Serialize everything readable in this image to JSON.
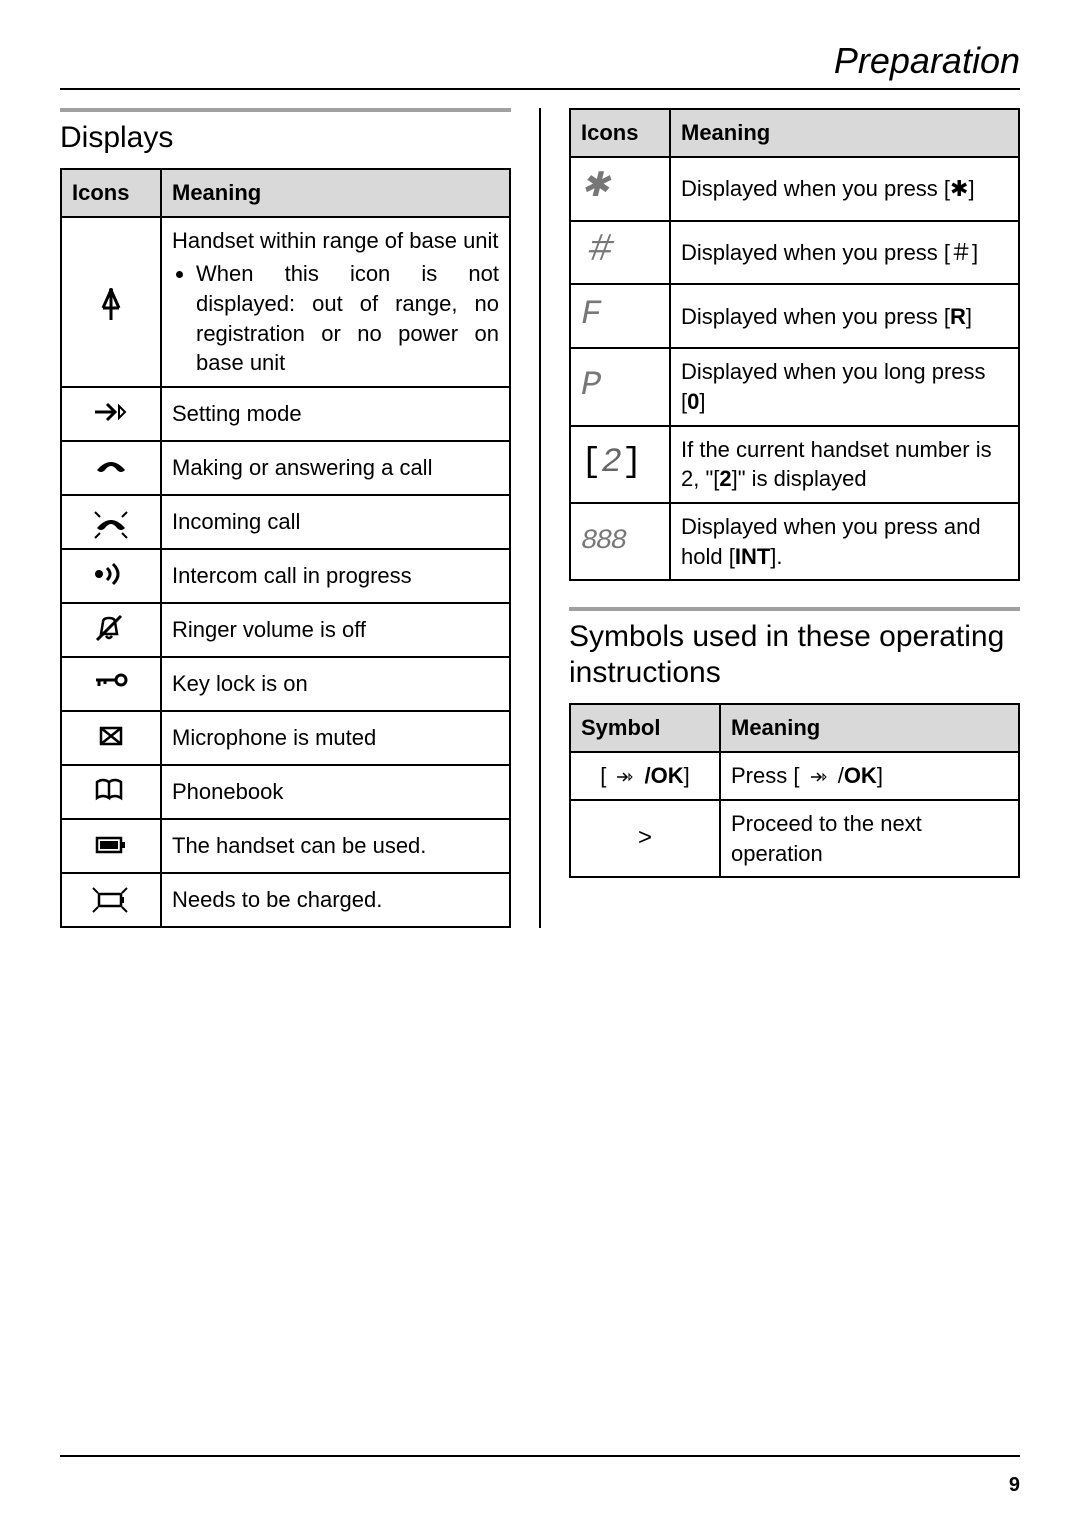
{
  "header": {
    "title": "Preparation"
  },
  "pageNumber": "9",
  "left": {
    "sectionTitle": "Displays",
    "columns": {
      "icons": "Icons",
      "meaning": "Meaning"
    },
    "rows": [
      {
        "icon": "antenna",
        "meaning": "Handset within range of base unit",
        "bullet": "When this icon is not displayed: out of range, no registration or no power on base unit"
      },
      {
        "icon": "arrow-ok",
        "meaning": "Setting mode"
      },
      {
        "icon": "handset-up",
        "meaning": "Making or answering a call"
      },
      {
        "icon": "handset-ringing",
        "meaning": "Incoming call"
      },
      {
        "icon": "intercom",
        "meaning": "Intercom call in progress"
      },
      {
        "icon": "ringer-off",
        "meaning": "Ringer volume is off"
      },
      {
        "icon": "keylock",
        "meaning": "Key lock is on"
      },
      {
        "icon": "mic-mute",
        "meaning": "Microphone is muted"
      },
      {
        "icon": "phonebook",
        "meaning": "Phonebook"
      },
      {
        "icon": "battery-full",
        "meaning": "The handset can be used."
      },
      {
        "icon": "battery-low",
        "meaning": "Needs to be charged."
      }
    ]
  },
  "rightTop": {
    "columns": {
      "icons": "Icons",
      "meaning": "Meaning"
    },
    "rows": [
      {
        "icon": "seg-star",
        "meaning_pre": "Displayed when you press ",
        "key": "[",
        "key_sym": "✱",
        "key_post": "]"
      },
      {
        "icon": "seg-hash",
        "meaning_pre": "Displayed when you press ",
        "key": "[",
        "key_sym": "＃",
        "key_post": "]"
      },
      {
        "icon": "seg-f",
        "meaning_pre": "Displayed when you press ",
        "key": "[",
        "key_bold": "R",
        "key_post_plain": "]"
      },
      {
        "icon": "seg-p",
        "meaning_pre": "Displayed when you long press ",
        "key": "[",
        "key_bold": "0",
        "key_post_plain": "]"
      },
      {
        "icon": "seg-bracket2",
        "meaning_full_1": "If the current handset number is 2, \"[",
        "meaning_bold": "2",
        "meaning_full_2": "]\" is displayed"
      },
      {
        "icon": "seg-888",
        "meaning_pre2": "Displayed when you press and hold [",
        "key_bold2": "INT",
        "key_post2": "]."
      }
    ]
  },
  "rightBottom": {
    "sectionTitle": "Symbols used in these operating instructions",
    "columns": {
      "symbol": "Symbol",
      "meaning": "Meaning"
    },
    "rows": [
      {
        "symbol": "arrow-ok-bracket",
        "meaning_pre": "Press [ ",
        "meaning_post": " /",
        "meaning_bold": "OK",
        "meaning_end": "]"
      },
      {
        "symbol_text": ">",
        "meaning": "Proceed to the next operation"
      }
    ]
  }
}
